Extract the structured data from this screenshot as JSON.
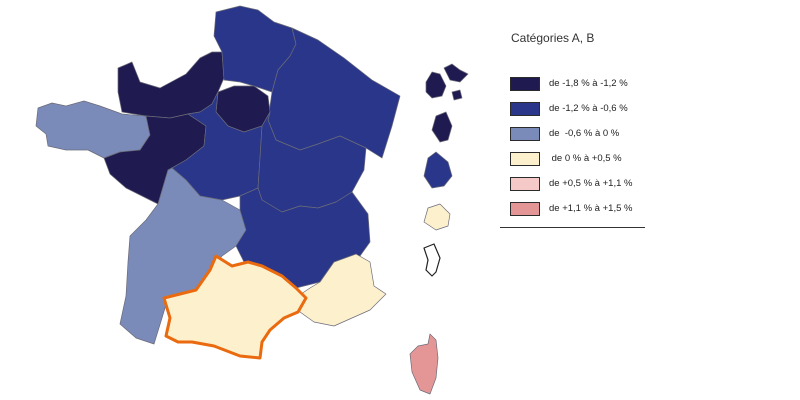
{
  "legend": {
    "title": "Catégories A, B",
    "classes": [
      {
        "label": "de -1,8 % à -1,2 %",
        "color": "#1f1a4f"
      },
      {
        "label": "de -1,2 % à -0,6 %",
        "color": "#29368a"
      },
      {
        "label": "de  -0,6 % à 0 %",
        "color": "#7a8bb9"
      },
      {
        "label": " de 0 % à +0,5 %",
        "color": "#fdf0cc"
      },
      {
        "label": "de +0,5 % à +1,1 %",
        "color": "#f6c9c9"
      },
      {
        "label": "de +1,1 % à +1,5 %",
        "color": "#e49696"
      }
    ]
  },
  "map": {
    "regions": [
      {
        "name": "Hauts-de-France",
        "class": 1
      },
      {
        "name": "Normandie",
        "class": 0
      },
      {
        "name": "Île-de-France",
        "class": 0
      },
      {
        "name": "Grand Est",
        "class": 1
      },
      {
        "name": "Bretagne",
        "class": 2
      },
      {
        "name": "Pays de la Loire",
        "class": 0
      },
      {
        "name": "Centre-Val de Loire",
        "class": 1
      },
      {
        "name": "Bourgogne-Franche-Comté",
        "class": 1
      },
      {
        "name": "Nouvelle-Aquitaine",
        "class": 2
      },
      {
        "name": "Auvergne-Rhône-Alpes",
        "class": 1
      },
      {
        "name": "Occitanie",
        "class": 3,
        "highlighted": true
      },
      {
        "name": "Provence-Alpes-Côte d'Azur",
        "class": 3
      },
      {
        "name": "Corse",
        "class": 5
      },
      {
        "name": "Guadeloupe",
        "class": 0
      },
      {
        "name": "Martinique",
        "class": 0
      },
      {
        "name": "Guyane",
        "class": 1
      },
      {
        "name": "La Réunion",
        "class": 3
      },
      {
        "name": "Mayotte",
        "class": null
      }
    ],
    "highlight_color": "#ea6a0f",
    "no_data_color": "#ffffff"
  }
}
